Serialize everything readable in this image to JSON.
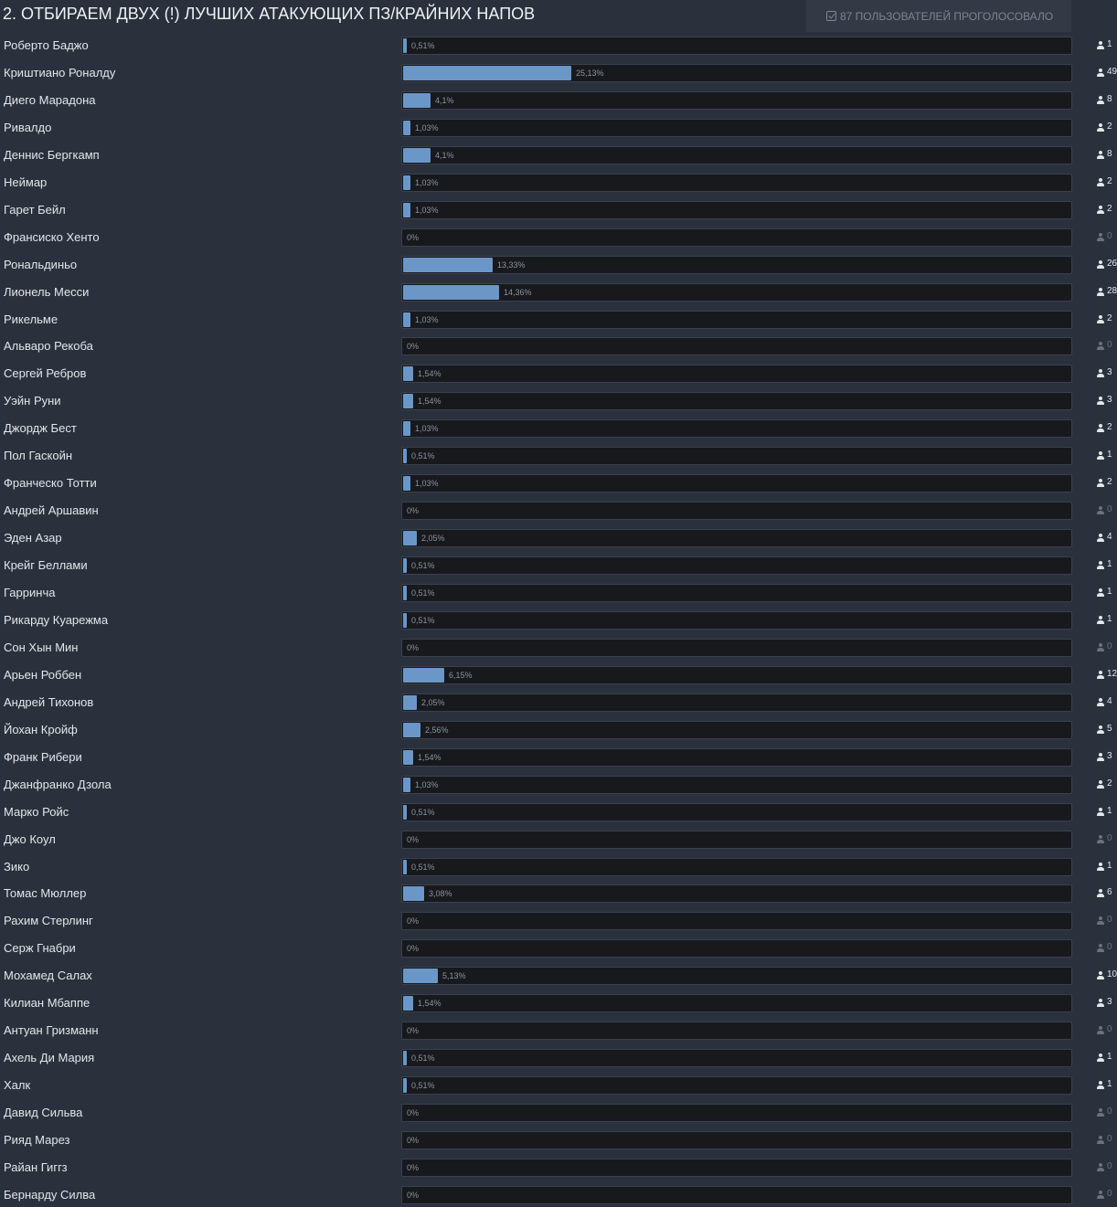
{
  "poll": {
    "title": "2. ОТБИРАЕМ ДВУХ (!) ЛУЧШИХ АТАКУЮЩИХ ПЗ/КРАЙНИХ НАПОВ",
    "voters_label": "87 ПОЛЬЗОВАТЕЛЕЙ ПРОГОЛОСОВАЛО",
    "voters_icon": "check-square-icon",
    "vote_icon": "user-icon",
    "colors": {
      "background": "#2b313c",
      "bar_fill": "#6a97c8",
      "bar_track": "#17191d"
    }
  },
  "options": [
    {
      "name": "Роберто Баджо",
      "percent_label": "0,51%",
      "percent": 0.51,
      "votes": "1"
    },
    {
      "name": "Криштиано Роналду",
      "percent_label": "25,13%",
      "percent": 25.13,
      "votes": "49"
    },
    {
      "name": "Диего Марадона",
      "percent_label": "4,1%",
      "percent": 4.1,
      "votes": "8"
    },
    {
      "name": "Ривалдо",
      "percent_label": "1,03%",
      "percent": 1.03,
      "votes": "2"
    },
    {
      "name": "Деннис Бергкамп",
      "percent_label": "4,1%",
      "percent": 4.1,
      "votes": "8"
    },
    {
      "name": "Неймар",
      "percent_label": "1,03%",
      "percent": 1.03,
      "votes": "2"
    },
    {
      "name": "Гарет Бейл",
      "percent_label": "1,03%",
      "percent": 1.03,
      "votes": "2"
    },
    {
      "name": "Франсиско Хенто",
      "percent_label": "0%",
      "percent": 0,
      "votes": "0"
    },
    {
      "name": "Рональдиньо",
      "percent_label": "13,33%",
      "percent": 13.33,
      "votes": "26"
    },
    {
      "name": "Лионель Месси",
      "percent_label": "14,36%",
      "percent": 14.36,
      "votes": "28"
    },
    {
      "name": "Рикельме",
      "percent_label": "1,03%",
      "percent": 1.03,
      "votes": "2"
    },
    {
      "name": "Альваро Рекоба",
      "percent_label": "0%",
      "percent": 0,
      "votes": "0"
    },
    {
      "name": "Сергей Ребров",
      "percent_label": "1,54%",
      "percent": 1.54,
      "votes": "3"
    },
    {
      "name": "Уэйн Руни",
      "percent_label": "1,54%",
      "percent": 1.54,
      "votes": "3"
    },
    {
      "name": "Джордж Бест",
      "percent_label": "1,03%",
      "percent": 1.03,
      "votes": "2"
    },
    {
      "name": "Пол Гаскойн",
      "percent_label": "0,51%",
      "percent": 0.51,
      "votes": "1"
    },
    {
      "name": "Франческо Тотти",
      "percent_label": "1,03%",
      "percent": 1.03,
      "votes": "2"
    },
    {
      "name": "Андрей Аршавин",
      "percent_label": "0%",
      "percent": 0,
      "votes": "0"
    },
    {
      "name": "Эден Азар",
      "percent_label": "2,05%",
      "percent": 2.05,
      "votes": "4"
    },
    {
      "name": "Крейг Беллами",
      "percent_label": "0,51%",
      "percent": 0.51,
      "votes": "1"
    },
    {
      "name": "Гарринча",
      "percent_label": "0,51%",
      "percent": 0.51,
      "votes": "1"
    },
    {
      "name": "Рикарду Куарежма",
      "percent_label": "0,51%",
      "percent": 0.51,
      "votes": "1"
    },
    {
      "name": "Сон Хын Мин",
      "percent_label": "0%",
      "percent": 0,
      "votes": "0"
    },
    {
      "name": "Арьен Роббен",
      "percent_label": "6,15%",
      "percent": 6.15,
      "votes": "12"
    },
    {
      "name": "Андрей Тихонов",
      "percent_label": "2,05%",
      "percent": 2.05,
      "votes": "4"
    },
    {
      "name": "Йохан Кройф",
      "percent_label": "2,56%",
      "percent": 2.56,
      "votes": "5"
    },
    {
      "name": "Франк Рибери",
      "percent_label": "1,54%",
      "percent": 1.54,
      "votes": "3"
    },
    {
      "name": "Джанфранко Дзола",
      "percent_label": "1,03%",
      "percent": 1.03,
      "votes": "2"
    },
    {
      "name": "Марко Ройс",
      "percent_label": "0,51%",
      "percent": 0.51,
      "votes": "1"
    },
    {
      "name": "Джо Коул",
      "percent_label": "0%",
      "percent": 0,
      "votes": "0"
    },
    {
      "name": "Зико",
      "percent_label": "0,51%",
      "percent": 0.51,
      "votes": "1"
    },
    {
      "name": "Томас Мюллер",
      "percent_label": "3,08%",
      "percent": 3.08,
      "votes": "6"
    },
    {
      "name": "Рахим Стерлинг",
      "percent_label": "0%",
      "percent": 0,
      "votes": "0"
    },
    {
      "name": "Серж Гнабри",
      "percent_label": "0%",
      "percent": 0,
      "votes": "0"
    },
    {
      "name": "Мохамед Салах",
      "percent_label": "5,13%",
      "percent": 5.13,
      "votes": "10"
    },
    {
      "name": "Килиан Мбаппе",
      "percent_label": "1,54%",
      "percent": 1.54,
      "votes": "3"
    },
    {
      "name": "Антуан Гризманн",
      "percent_label": "0%",
      "percent": 0,
      "votes": "0"
    },
    {
      "name": "Ахель Ди Мария",
      "percent_label": "0,51%",
      "percent": 0.51,
      "votes": "1"
    },
    {
      "name": "Халк",
      "percent_label": "0,51%",
      "percent": 0.51,
      "votes": "1"
    },
    {
      "name": "Давид Сильва",
      "percent_label": "0%",
      "percent": 0,
      "votes": "0"
    },
    {
      "name": "Рияд Марез",
      "percent_label": "0%",
      "percent": 0,
      "votes": "0"
    },
    {
      "name": "Райан Гиггз",
      "percent_label": "0%",
      "percent": 0,
      "votes": "0"
    },
    {
      "name": "Бернарду Силва",
      "percent_label": "0%",
      "percent": 0,
      "votes": "0"
    }
  ]
}
